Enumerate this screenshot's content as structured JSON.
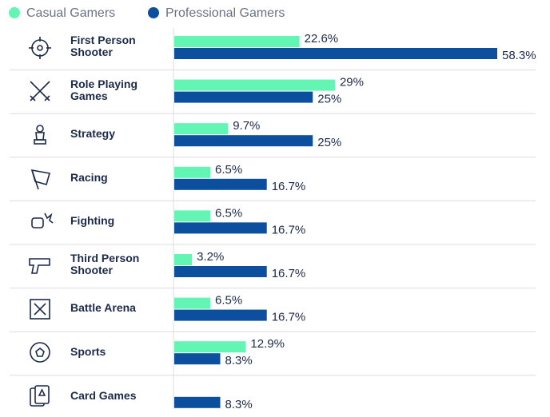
{
  "chart_data": {
    "type": "bar",
    "orientation": "horizontal",
    "categories": [
      "First Person Shooter",
      "Role Playing Games",
      "Strategy",
      "Racing",
      "Fighting",
      "Third Person Shooter",
      "Battle Arena",
      "Sports",
      "Card Games"
    ],
    "series": [
      {
        "name": "Casual Gamers",
        "color": "#62f5b3",
        "values": [
          22.6,
          29,
          9.7,
          6.5,
          6.5,
          3.2,
          6.5,
          12.9,
          null
        ],
        "value_labels": [
          "22.6%",
          "29%",
          "9.7%",
          "6.5%",
          "6.5%",
          "3.2%",
          "6.5%",
          "12.9%",
          null
        ]
      },
      {
        "name": "Professional Gamers",
        "color": "#0b4f9e",
        "values": [
          58.3,
          25,
          25,
          16.7,
          16.7,
          16.7,
          16.7,
          8.3,
          8.3
        ],
        "value_labels": [
          "58.3%",
          "25%",
          "25%",
          "16.7%",
          "16.7%",
          "16.7%",
          "16.7%",
          "8.3%",
          "8.3%"
        ]
      }
    ]
  }
}
